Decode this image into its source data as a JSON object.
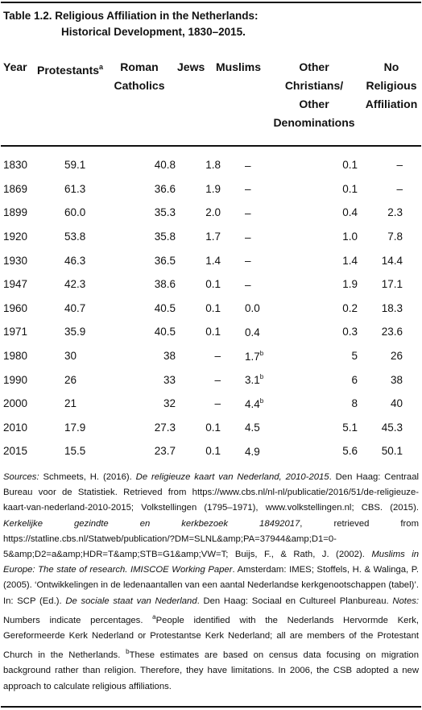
{
  "caption": {
    "line1": "Table 1.2.  Religious Affiliation in the Netherlands:",
    "line2": "Historical Development, 1830–2015."
  },
  "headers": {
    "year": "Year",
    "protestants": "Protestants",
    "protestants_sup": "a",
    "roman_1": "Roman",
    "roman_2": "Catholics",
    "jews": "Jews",
    "muslims": "Muslims",
    "other_1": "Other",
    "other_2": "Christians/",
    "other_3": "Other",
    "other_4": "Denominations",
    "no_1": "No",
    "no_2": "Religious",
    "no_3": "Affiliation"
  },
  "rows": [
    {
      "year": "1830",
      "protestants": "59.1",
      "roman_catholics": "40.8",
      "jews": "1.8",
      "muslims": "–",
      "muslims_sup": "",
      "other": "0.1",
      "no_religion": "–"
    },
    {
      "year": "1869",
      "protestants": "61.3",
      "roman_catholics": "36.6",
      "jews": "1.9",
      "muslims": "–",
      "muslims_sup": "",
      "other": "0.1",
      "no_religion": "–"
    },
    {
      "year": "1899",
      "protestants": "60.0",
      "roman_catholics": "35.3",
      "jews": "2.0",
      "muslims": "–",
      "muslims_sup": "",
      "other": "0.4",
      "no_religion": "2.3"
    },
    {
      "year": "1920",
      "protestants": "53.8",
      "roman_catholics": "35.8",
      "jews": "1.7",
      "muslims": "–",
      "muslims_sup": "",
      "other": "1.0",
      "no_religion": "7.8"
    },
    {
      "year": "1930",
      "protestants": "46.3",
      "roman_catholics": "36.5",
      "jews": "1.4",
      "muslims": "–",
      "muslims_sup": "",
      "other": "1.4",
      "no_religion": "14.4"
    },
    {
      "year": "1947",
      "protestants": "42.3",
      "roman_catholics": "38.6",
      "jews": "0.1",
      "muslims": "–",
      "muslims_sup": "",
      "other": "1.9",
      "no_religion": "17.1"
    },
    {
      "year": "1960",
      "protestants": "40.7",
      "roman_catholics": "40.5",
      "jews": "0.1",
      "muslims": "0.0",
      "muslims_sup": "",
      "other": "0.2",
      "no_religion": "18.3"
    },
    {
      "year": "1971",
      "protestants": "35.9",
      "roman_catholics": "40.5",
      "jews": "0.1",
      "muslims": "0.4",
      "muslims_sup": "",
      "other": "0.3",
      "no_religion": "23.6"
    },
    {
      "year": "1980",
      "protestants": "30",
      "roman_catholics": "38",
      "jews": "–",
      "muslims": "1.7",
      "muslims_sup": "b",
      "other": "5",
      "no_religion": "26"
    },
    {
      "year": "1990",
      "protestants": "26",
      "roman_catholics": "33",
      "jews": "–",
      "muslims": "3.1",
      "muslims_sup": "b",
      "other": "6",
      "no_religion": "38"
    },
    {
      "year": "2000",
      "protestants": "21",
      "roman_catholics": "32",
      "jews": "–",
      "muslims": "4.4",
      "muslims_sup": "b",
      "other": "8",
      "no_religion": "40"
    },
    {
      "year": "2010",
      "protestants": "17.9",
      "roman_catholics": "27.3",
      "jews": "0.1",
      "muslims": "4.5",
      "muslims_sup": "",
      "other": "5.1",
      "no_religion": "45.3"
    },
    {
      "year": "2015",
      "protestants": "15.5",
      "roman_catholics": "23.7",
      "jews": "0.1",
      "muslims": "4.9",
      "muslims_sup": "",
      "other": "5.6",
      "no_religion": "50.1"
    }
  ],
  "notes": {
    "sources_label": "Sources:",
    "s1": " Schmeets, H. (2016). ",
    "s1_title": "De religieuze kaart van Nederland, 2010-2015",
    "s2": ". Den Haag: Centraal Bureau voor de Statistiek. Retrieved from https://www.cbs.nl/nl-nl/publicatie/2016/51/de-religieuze-kaart-van-nederland-2010-2015; Volkstellingen (1795–1971), www.volkstellingen.nl; CBS. (2015). ",
    "s2_title": "Kerkelijke gezindte en kerkbezoek 18492017",
    "s3": ", retrieved from https://statline.cbs.nl/Statweb/publication/?DM=SLNL&amp;PA=37944&amp;D1=0-5&amp;D2=a&amp;HDR=T&amp;STB=G1&amp;VW=T; Buijs, F., & Rath, J. (2002). ",
    "s3_title": "Muslims in Europe: The state of research. IMISCOE Working Paper",
    "s4": ". Amsterdam: IMES; Stoffels, H. & Walinga, P. (2005). ‘Ontwikkelingen in de ledenaantallen van een aantal Nederlandse kerkgenootschappen (tabel)’. In: SCP (Ed.). ",
    "s4_title": "De sociale staat van Nederland",
    "s5": ". Den Haag: Sociaal en Cultureel Planbureau.",
    "notes_label": "Notes:",
    "n1": " Numbers indicate percentages. ",
    "sup_a": "a",
    "n2": "People identified with the Nederlands Hervormde Kerk, Gereformeerde Kerk Nederland or Protestantse Kerk Nederland; all are members of the Protestant Church in the Netherlands. ",
    "sup_b": "b",
    "n3": "These estimates are based on census data focusing on migration background rather than religion. Therefore, they have limitations. In 2006, the CSB adopted a new approach to calculate religious affiliations."
  }
}
